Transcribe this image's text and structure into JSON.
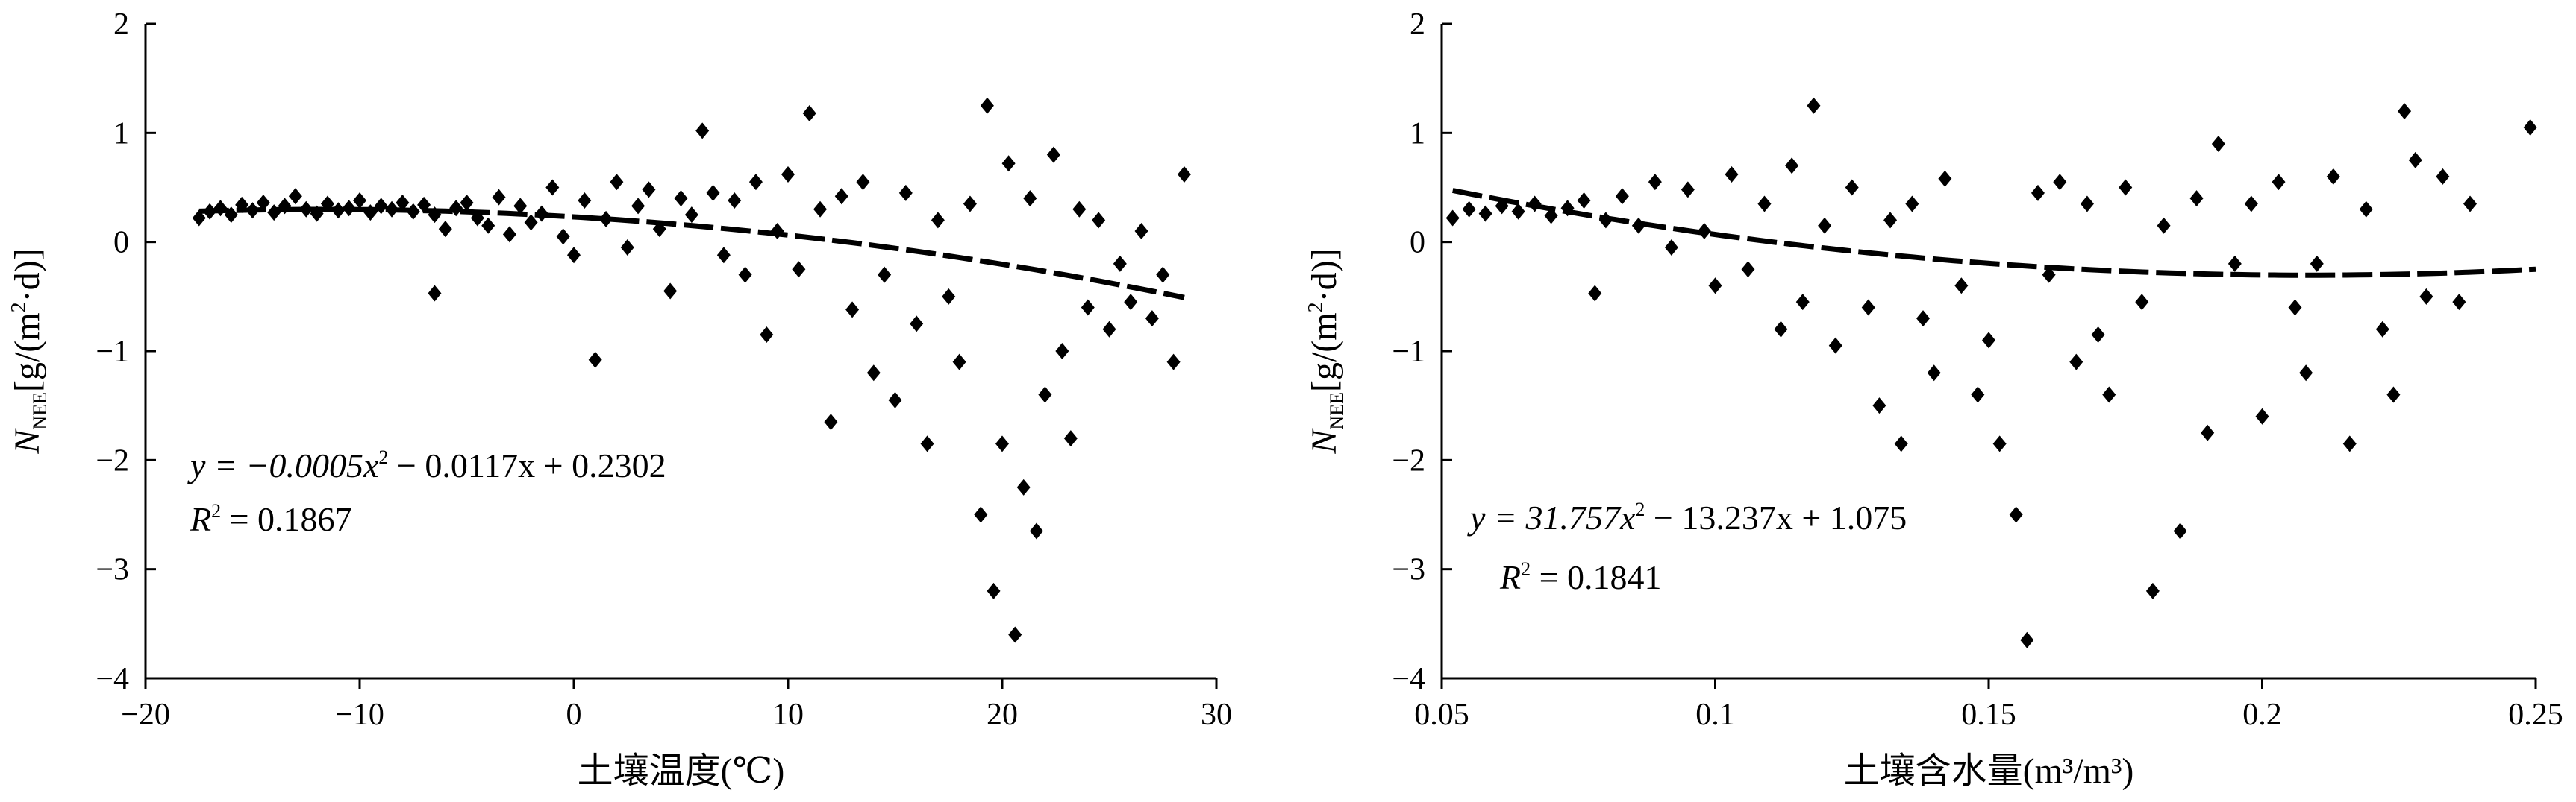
{
  "chart_data": [
    {
      "type": "scatter",
      "xlabel": "土壤温度(℃)",
      "ylabel": {
        "main": "N",
        "sub": "NEE",
        "unit_pre": "[g/(m",
        "unit_sup": "2",
        "unit_post": "·d)]"
      },
      "xlim": [
        -20,
        30
      ],
      "ylim": [
        -4,
        2
      ],
      "xticks": [
        -20,
        -10,
        0,
        10,
        20,
        30
      ],
      "xtick_labels": [
        "−20",
        "−10",
        "0",
        "10",
        "20",
        "30"
      ],
      "yticks": [
        2,
        1,
        0,
        -1,
        -2,
        -3,
        -4
      ],
      "ytick_labels": [
        "2",
        "1",
        "0",
        "−1",
        "−2",
        "−3",
        "−4"
      ],
      "grid": false,
      "equation": {
        "line1_pre": "y = −0.0005x",
        "line1_sup": "2",
        "line1_post": " − 0.0117x + 0.2302",
        "line2_pre": "R",
        "line2_sup": "2",
        "line2_post": " = 0.1867"
      },
      "fit": {
        "type": "poly2",
        "a": -0.0005,
        "b": -0.0117,
        "c": 0.2302,
        "x_range": [
          -17.5,
          28.5
        ]
      },
      "points": [
        [
          -17.5,
          0.22
        ],
        [
          -17.0,
          0.28
        ],
        [
          -16.5,
          0.31
        ],
        [
          -16.0,
          0.25
        ],
        [
          -15.5,
          0.34
        ],
        [
          -15.0,
          0.29
        ],
        [
          -14.5,
          0.36
        ],
        [
          -14.0,
          0.27
        ],
        [
          -13.5,
          0.33
        ],
        [
          -13.0,
          0.42
        ],
        [
          -12.5,
          0.3
        ],
        [
          -12.0,
          0.26
        ],
        [
          -11.5,
          0.35
        ],
        [
          -11.0,
          0.29
        ],
        [
          -10.5,
          0.31
        ],
        [
          -10.0,
          0.38
        ],
        [
          -9.5,
          0.27
        ],
        [
          -9.0,
          0.33
        ],
        [
          -8.5,
          0.3
        ],
        [
          -8.0,
          0.36
        ],
        [
          -7.5,
          0.28
        ],
        [
          -7.0,
          0.34
        ],
        [
          -6.5,
          0.25
        ],
        [
          -6.0,
          0.12
        ],
        [
          -6.5,
          -0.47
        ],
        [
          -5.5,
          0.31
        ],
        [
          -5.0,
          0.36
        ],
        [
          -4.5,
          0.22
        ],
        [
          -4.0,
          0.15
        ],
        [
          -3.5,
          0.41
        ],
        [
          -3.0,
          0.07
        ],
        [
          -2.5,
          0.33
        ],
        [
          -2.0,
          0.18
        ],
        [
          -1.5,
          0.26
        ],
        [
          -1.0,
          0.5
        ],
        [
          -0.5,
          0.05
        ],
        [
          0.0,
          -0.12
        ],
        [
          0.5,
          0.38
        ],
        [
          1.0,
          -1.08
        ],
        [
          1.5,
          0.21
        ],
        [
          2.0,
          0.55
        ],
        [
          2.5,
          -0.05
        ],
        [
          3.0,
          0.33
        ],
        [
          3.5,
          0.48
        ],
        [
          4.0,
          0.12
        ],
        [
          4.5,
          -0.45
        ],
        [
          5.0,
          0.4
        ],
        [
          5.5,
          0.25
        ],
        [
          6.0,
          1.02
        ],
        [
          6.5,
          0.45
        ],
        [
          7.0,
          -0.12
        ],
        [
          7.5,
          0.38
        ],
        [
          8.0,
          -0.3
        ],
        [
          8.5,
          0.55
        ],
        [
          9.0,
          -0.85
        ],
        [
          9.5,
          0.1
        ],
        [
          10.0,
          0.62
        ],
        [
          10.5,
          -0.25
        ],
        [
          11.0,
          1.18
        ],
        [
          11.5,
          0.3
        ],
        [
          12.0,
          -1.65
        ],
        [
          12.5,
          0.42
        ],
        [
          13.0,
          -0.62
        ],
        [
          13.5,
          0.55
        ],
        [
          14.0,
          -1.2
        ],
        [
          14.5,
          -0.3
        ],
        [
          15.0,
          -1.45
        ],
        [
          15.5,
          0.45
        ],
        [
          16.0,
          -0.75
        ],
        [
          16.5,
          -1.85
        ],
        [
          17.0,
          0.2
        ],
        [
          17.5,
          -0.5
        ],
        [
          18.0,
          -1.1
        ],
        [
          18.5,
          0.35
        ],
        [
          19.0,
          -2.5
        ],
        [
          19.3,
          1.25
        ],
        [
          19.6,
          -3.2
        ],
        [
          20.0,
          -1.85
        ],
        [
          20.3,
          0.72
        ],
        [
          20.6,
          -3.6
        ],
        [
          21.0,
          -2.25
        ],
        [
          21.3,
          0.4
        ],
        [
          21.6,
          -2.65
        ],
        [
          22.0,
          -1.4
        ],
        [
          22.4,
          0.8
        ],
        [
          22.8,
          -1.0
        ],
        [
          23.2,
          -1.8
        ],
        [
          23.6,
          0.3
        ],
        [
          24.0,
          -0.6
        ],
        [
          24.5,
          0.2
        ],
        [
          25.0,
          -0.8
        ],
        [
          25.5,
          -0.2
        ],
        [
          26.0,
          -0.55
        ],
        [
          26.5,
          0.1
        ],
        [
          27.0,
          -0.7
        ],
        [
          27.5,
          -0.3
        ],
        [
          28.0,
          -1.1
        ],
        [
          28.5,
          0.62
        ]
      ]
    },
    {
      "type": "scatter",
      "xlabel": "土壤含水量(m³/m³)",
      "ylabel": {
        "main": "N",
        "sub": "NEE",
        "unit_pre": "[g/(m",
        "unit_sup": "2",
        "unit_post": "·d)]"
      },
      "xlim": [
        0.05,
        0.25
      ],
      "ylim": [
        -4,
        2
      ],
      "xticks": [
        0.05,
        0.1,
        0.15,
        0.2,
        0.25
      ],
      "xtick_labels": [
        "0.05",
        "0.1",
        "0.15",
        "0.2",
        "0.25"
      ],
      "yticks": [
        2,
        1,
        0,
        -1,
        -2,
        -3,
        -4
      ],
      "ytick_labels": [
        "2",
        "1",
        "0",
        "−1",
        "−2",
        "−3",
        "−4"
      ],
      "grid": false,
      "equation": {
        "line1_pre": "y = 31.757x",
        "line1_sup": "2",
        "line1_post": " − 13.237x + 1.075",
        "line2_pre": "R",
        "line2_sup": "2",
        "line2_post": " = 0.1841"
      },
      "fit": {
        "type": "poly2",
        "a": 31.757,
        "b": -13.237,
        "c": 1.075,
        "x_range": [
          0.052,
          0.25
        ]
      },
      "points": [
        [
          0.052,
          0.22
        ],
        [
          0.055,
          0.3
        ],
        [
          0.058,
          0.26
        ],
        [
          0.061,
          0.33
        ],
        [
          0.064,
          0.28
        ],
        [
          0.067,
          0.35
        ],
        [
          0.07,
          0.24
        ],
        [
          0.073,
          0.31
        ],
        [
          0.076,
          0.38
        ],
        [
          0.078,
          -0.47
        ],
        [
          0.08,
          0.2
        ],
        [
          0.083,
          0.42
        ],
        [
          0.086,
          0.15
        ],
        [
          0.089,
          0.55
        ],
        [
          0.092,
          -0.05
        ],
        [
          0.095,
          0.48
        ],
        [
          0.098,
          0.1
        ],
        [
          0.1,
          -0.4
        ],
        [
          0.103,
          0.62
        ],
        [
          0.106,
          -0.25
        ],
        [
          0.109,
          0.35
        ],
        [
          0.112,
          -0.8
        ],
        [
          0.114,
          0.7
        ],
        [
          0.116,
          -0.55
        ],
        [
          0.118,
          1.25
        ],
        [
          0.12,
          0.15
        ],
        [
          0.122,
          -0.95
        ],
        [
          0.125,
          0.5
        ],
        [
          0.128,
          -0.6
        ],
        [
          0.13,
          -1.5
        ],
        [
          0.132,
          0.2
        ],
        [
          0.134,
          -1.85
        ],
        [
          0.136,
          0.35
        ],
        [
          0.138,
          -0.7
        ],
        [
          0.14,
          -1.2
        ],
        [
          0.142,
          0.58
        ],
        [
          0.145,
          -0.4
        ],
        [
          0.148,
          -1.4
        ],
        [
          0.15,
          -0.9
        ],
        [
          0.152,
          -1.85
        ],
        [
          0.155,
          -2.5
        ],
        [
          0.157,
          -3.65
        ],
        [
          0.159,
          0.45
        ],
        [
          0.161,
          -0.3
        ],
        [
          0.163,
          0.55
        ],
        [
          0.166,
          -1.1
        ],
        [
          0.168,
          0.35
        ],
        [
          0.17,
          -0.85
        ],
        [
          0.172,
          -1.4
        ],
        [
          0.175,
          0.5
        ],
        [
          0.178,
          -0.55
        ],
        [
          0.18,
          -3.2
        ],
        [
          0.182,
          0.15
        ],
        [
          0.185,
          -2.65
        ],
        [
          0.188,
          0.4
        ],
        [
          0.19,
          -1.75
        ],
        [
          0.192,
          0.9
        ],
        [
          0.195,
          -0.2
        ],
        [
          0.198,
          0.35
        ],
        [
          0.2,
          -1.6
        ],
        [
          0.203,
          0.55
        ],
        [
          0.206,
          -0.6
        ],
        [
          0.208,
          -1.2
        ],
        [
          0.21,
          -0.2
        ],
        [
          0.213,
          0.6
        ],
        [
          0.216,
          -1.85
        ],
        [
          0.219,
          0.3
        ],
        [
          0.222,
          -0.8
        ],
        [
          0.224,
          -1.4
        ],
        [
          0.226,
          1.2
        ],
        [
          0.228,
          0.75
        ],
        [
          0.23,
          -0.5
        ],
        [
          0.233,
          0.6
        ],
        [
          0.236,
          -0.55
        ],
        [
          0.238,
          0.35
        ],
        [
          0.249,
          1.05
        ]
      ]
    }
  ]
}
